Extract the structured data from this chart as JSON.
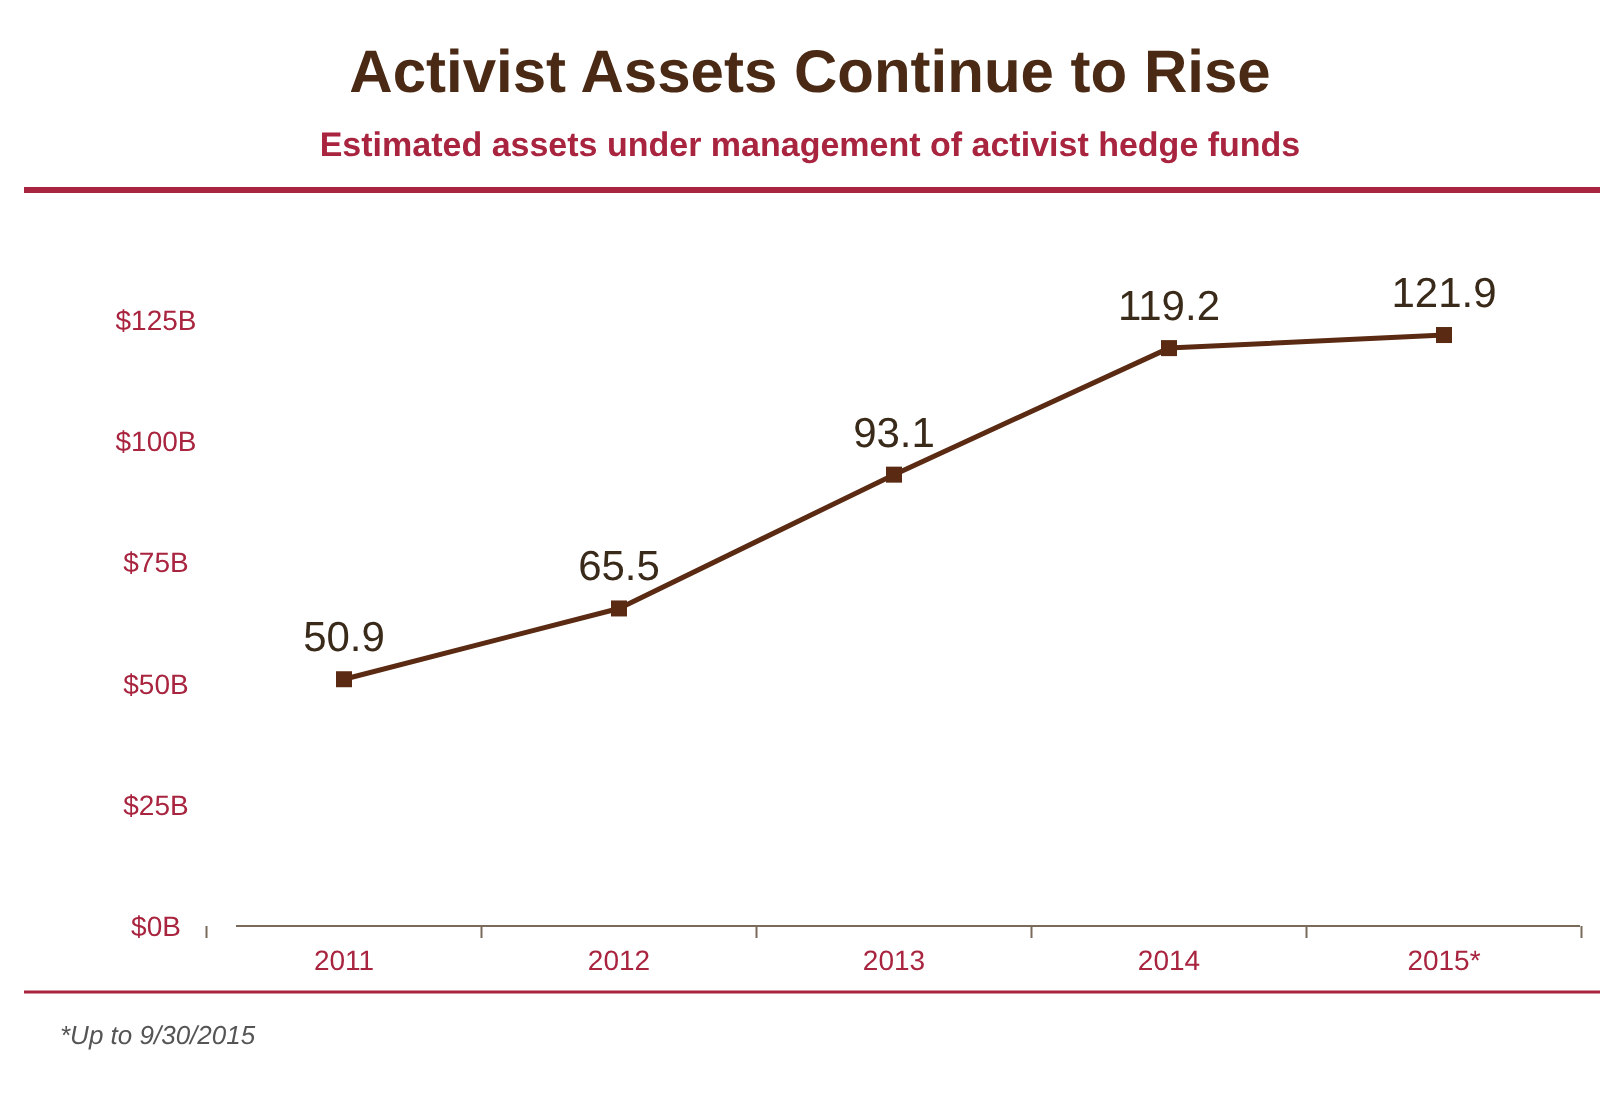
{
  "chart_data": {
    "type": "line",
    "title": "Activist Assets Continue to Rise",
    "subtitle": "Estimated assets under management of activist hedge funds",
    "categories": [
      "2011",
      "2012",
      "2013",
      "2014",
      "2015*"
    ],
    "series": [
      {
        "color": "#5a2a12",
        "values": [
          50.9,
          65.5,
          93.1,
          119.2,
          121.9
        ]
      }
    ],
    "ylim": [
      0,
      125
    ],
    "yticks": [
      {
        "value": 0,
        "label": "$0B"
      },
      {
        "value": 25,
        "label": "$25B"
      },
      {
        "value": 50,
        "label": "$50B"
      },
      {
        "value": 75,
        "label": "$75B"
      },
      {
        "value": 100,
        "label": "$100B"
      },
      {
        "value": 125,
        "label": "$125B"
      }
    ],
    "data_labels": true,
    "marker": "square",
    "line_style": "solid",
    "grid": false,
    "annotations": [
      "*Up to 9/30/2015"
    ]
  }
}
